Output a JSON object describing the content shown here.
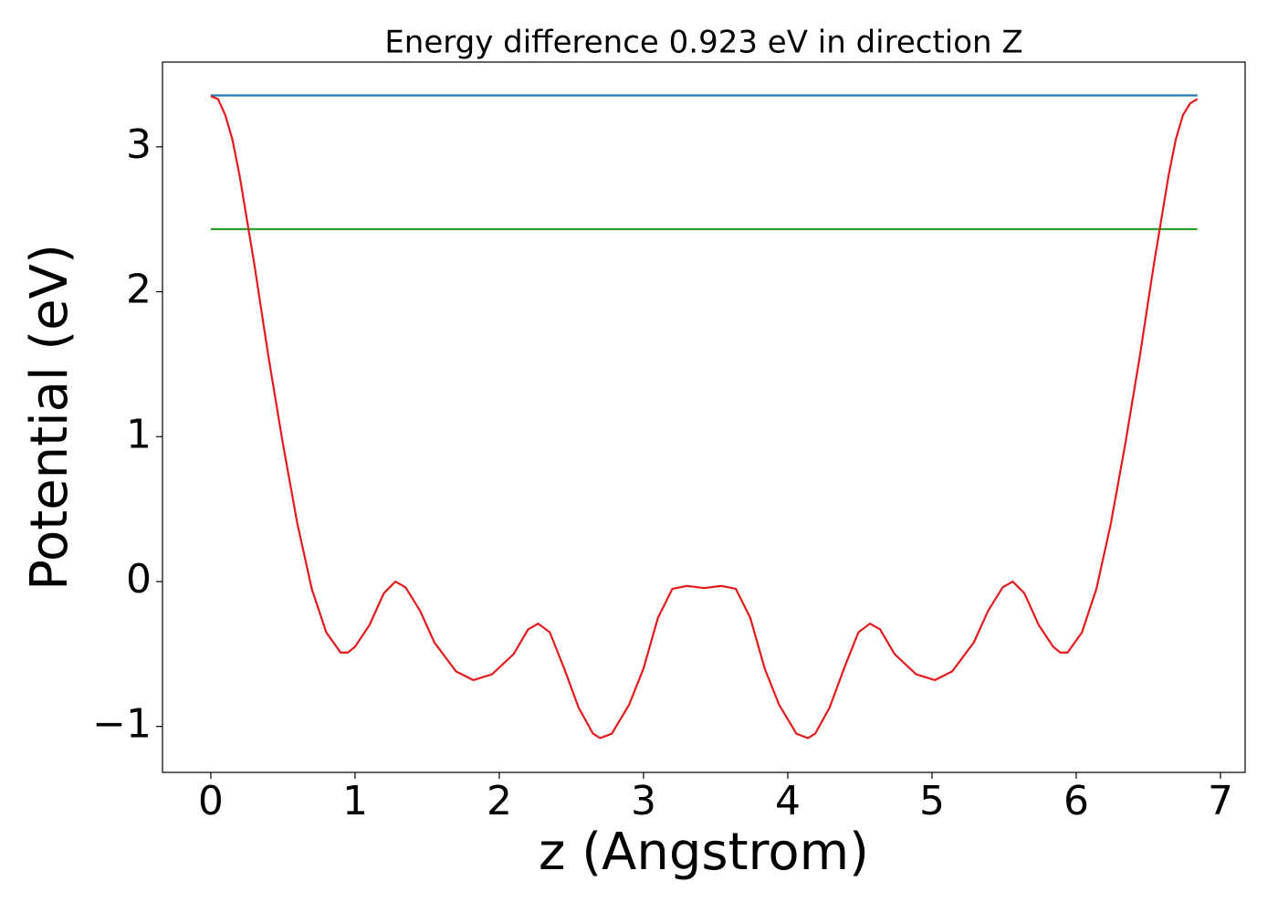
{
  "chart_data": {
    "type": "line",
    "title": "Energy difference 0.923 eV in direction Z",
    "xlabel": "z (Angstrom)",
    "ylabel": "Potential (eV)",
    "xlim": [
      -0.335,
      7.171
    ],
    "ylim": [
      -1.317,
      3.585
    ],
    "xticks": [
      0,
      1,
      2,
      3,
      4,
      5,
      6,
      7
    ],
    "yticks": [
      {
        "value": -1,
        "label": "−1"
      },
      0,
      1,
      2,
      3
    ],
    "series": [
      {
        "color": "#1f77b4",
        "x": [
          0,
          6.84
        ],
        "values": [
          3.355,
          3.355
        ]
      },
      {
        "color": "#2ca02c",
        "x": [
          0,
          6.84
        ],
        "values": [
          2.432,
          2.432
        ]
      },
      {
        "color": "#e31a1c",
        "x": [
          0,
          0.05,
          0.1,
          0.15,
          0.2,
          0.3,
          0.4,
          0.5,
          0.6,
          0.7,
          0.8,
          0.9,
          0.95,
          1.0,
          1.1,
          1.2,
          1.28,
          1.35,
          1.45,
          1.55,
          1.7,
          1.82,
          1.95,
          2.1,
          2.2,
          2.27,
          2.35,
          2.45,
          2.55,
          2.65,
          2.7,
          2.78,
          2.9,
          3.0,
          3.1,
          3.2,
          3.3,
          3.42,
          3.54,
          3.64,
          3.74,
          3.84,
          3.94,
          4.06,
          4.14,
          4.19,
          4.29,
          4.39,
          4.49,
          4.57,
          4.64,
          4.74,
          4.89,
          5.02,
          5.14,
          5.29,
          5.39,
          5.49,
          5.56,
          5.64,
          5.74,
          5.84,
          5.89,
          5.94,
          6.04,
          6.14,
          6.24,
          6.34,
          6.44,
          6.54,
          6.64,
          6.69,
          6.74,
          6.79,
          6.84
        ],
        "values": [
          3.35,
          3.33,
          3.22,
          3.05,
          2.8,
          2.2,
          1.55,
          0.95,
          0.4,
          -0.05,
          -0.35,
          -0.49,
          -0.49,
          -0.45,
          -0.3,
          -0.08,
          0.0,
          -0.04,
          -0.2,
          -0.42,
          -0.62,
          -0.68,
          -0.64,
          -0.5,
          -0.33,
          -0.29,
          -0.35,
          -0.6,
          -0.87,
          -1.05,
          -1.08,
          -1.05,
          -0.85,
          -0.6,
          -0.25,
          -0.05,
          -0.03,
          -0.045,
          -0.03,
          -0.05,
          -0.25,
          -0.6,
          -0.85,
          -1.05,
          -1.08,
          -1.05,
          -0.87,
          -0.6,
          -0.35,
          -0.29,
          -0.33,
          -0.5,
          -0.64,
          -0.68,
          -0.62,
          -0.42,
          -0.2,
          -0.04,
          0.0,
          -0.08,
          -0.3,
          -0.45,
          -0.49,
          -0.49,
          -0.35,
          -0.05,
          0.4,
          0.95,
          1.55,
          2.2,
          2.8,
          3.05,
          3.22,
          3.3,
          3.33
        ]
      }
    ]
  }
}
